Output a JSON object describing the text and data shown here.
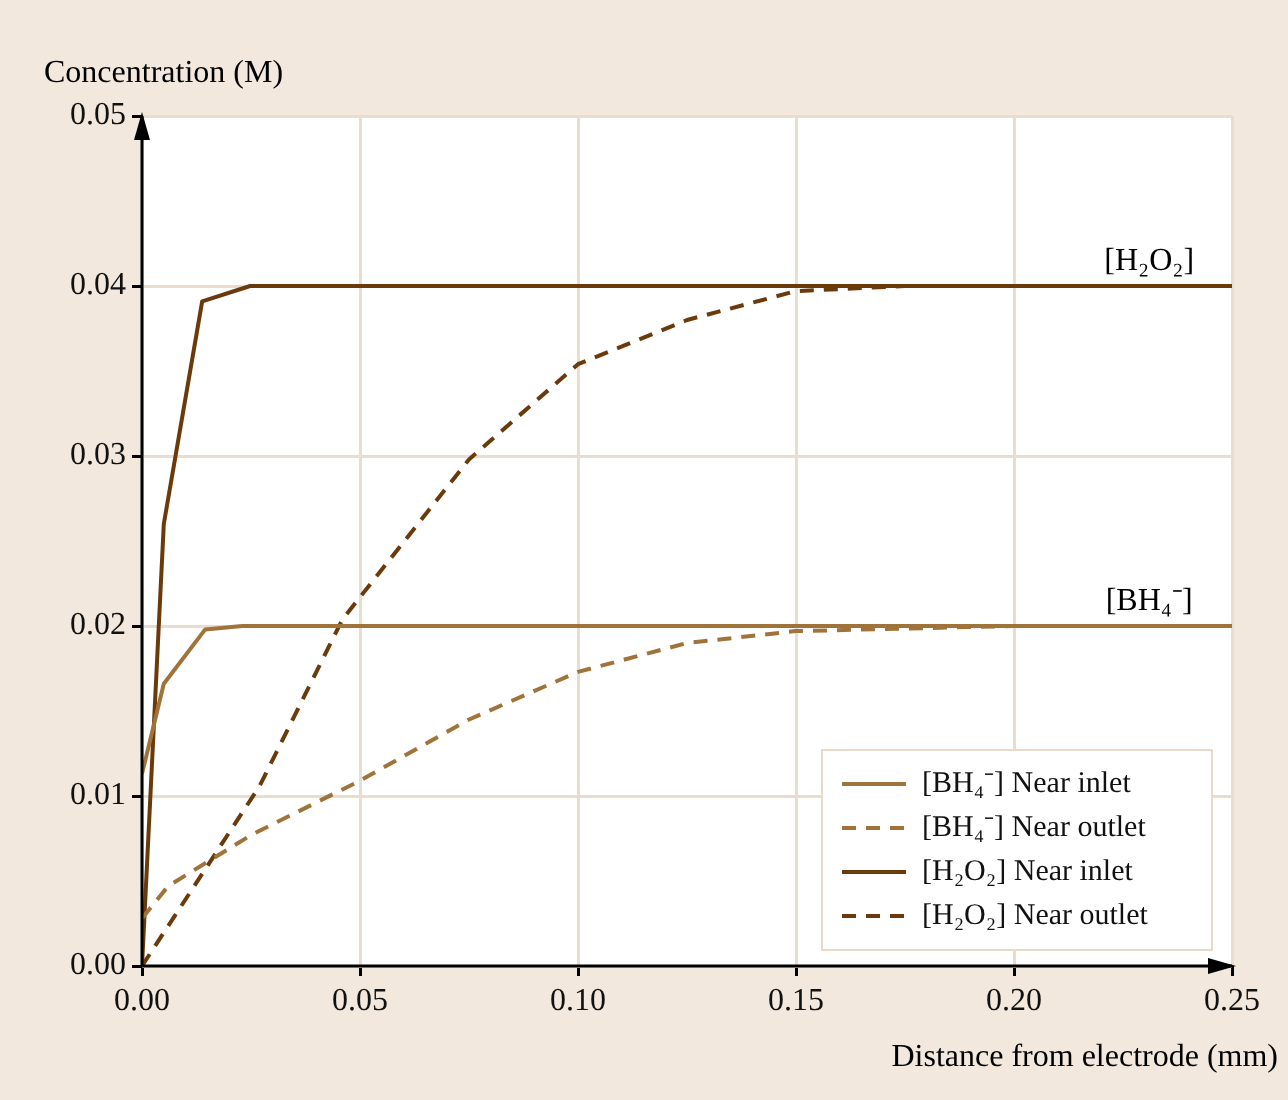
{
  "chart_data": {
    "type": "line",
    "xlabel": "Distance from electrode (mm)",
    "ylabel": "Concentration (M)",
    "xlim": [
      0,
      0.25
    ],
    "ylim": [
      0,
      0.05
    ],
    "xticks": [
      {
        "value": 0,
        "label": "0.00"
      },
      {
        "value": 0.05,
        "label": "0.05"
      },
      {
        "value": 0.1,
        "label": "0.10"
      },
      {
        "value": 0.15,
        "label": "0.15"
      },
      {
        "value": 0.2,
        "label": "0.20"
      },
      {
        "value": 0.25,
        "label": "0.25"
      }
    ],
    "yticks": [
      {
        "value": 0,
        "label": "0.00"
      },
      {
        "value": 0.01,
        "label": "0.01"
      },
      {
        "value": 0.02,
        "label": "0.02"
      },
      {
        "value": 0.03,
        "label": "0.03"
      },
      {
        "value": 0.04,
        "label": "0.04"
      },
      {
        "value": 0.05,
        "label": "0.05"
      }
    ],
    "grid": true,
    "legend": "bottom right",
    "marker": "none",
    "series": [
      {
        "name": "[BH₄⁻] Near inlet",
        "color": "#a0733a",
        "line_style": "solid",
        "x": [
          0,
          0.005,
          0.0145,
          0.023,
          0.25
        ],
        "values": [
          0.0113,
          0.0166,
          0.0198,
          0.02,
          0.02
        ]
      },
      {
        "name": "[BH₄⁻] Near outlet",
        "color": "#a0733a",
        "line_style": "dashed",
        "x": [
          0,
          0.006,
          0.025,
          0.05,
          0.075,
          0.1,
          0.125,
          0.15,
          0.2,
          0.25
        ],
        "values": [
          0.0028,
          0.0047,
          0.0077,
          0.0109,
          0.0145,
          0.0173,
          0.019,
          0.0197,
          0.02,
          0.02
        ]
      },
      {
        "name": "[H₂O₂] Near inlet",
        "color": "#6b3a0a",
        "line_style": "solid",
        "x": [
          0,
          0.005,
          0.0138,
          0.0248,
          0.25
        ],
        "values": [
          0,
          0.026,
          0.0391,
          0.04,
          0.04
        ]
      },
      {
        "name": "[H₂O₂] Near outlet",
        "color": "#6b3a0a",
        "line_style": "dashed",
        "x": [
          0,
          0.027,
          0.046,
          0.075,
          0.1,
          0.125,
          0.15,
          0.175,
          0.25
        ],
        "values": [
          0,
          0.0106,
          0.0204,
          0.0298,
          0.0354,
          0.038,
          0.0397,
          0.04,
          0.04
        ]
      }
    ],
    "annotations": [
      {
        "text": "[H₂O₂]",
        "x": 0.231,
        "y": 0.04
      },
      {
        "text": "[BH₄⁻]",
        "x": 0.231,
        "y": 0.02
      }
    ]
  }
}
